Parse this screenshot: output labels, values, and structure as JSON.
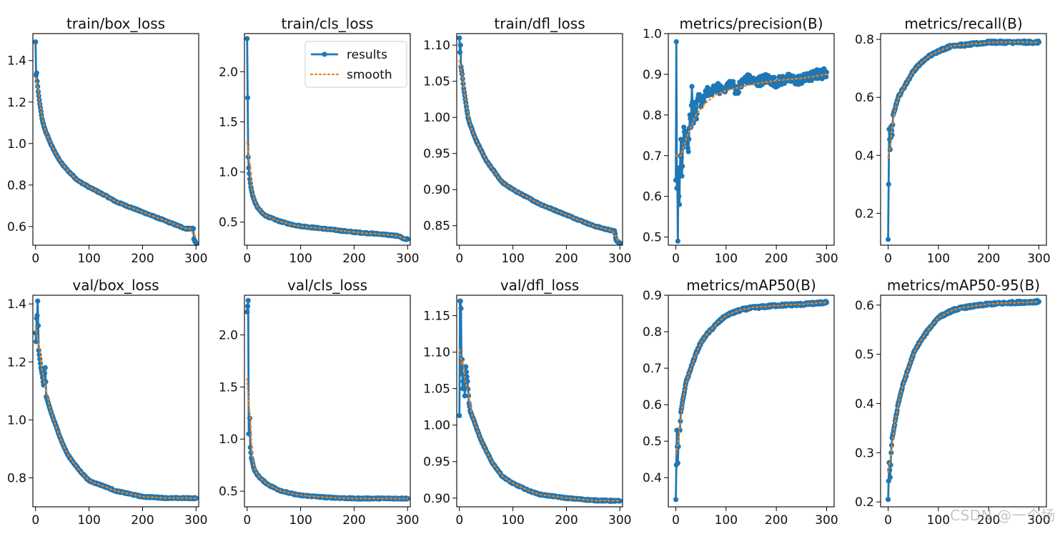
{
  "style": {
    "results_color": "#1f77b4",
    "smooth_color": "#ff7f0e",
    "frame_color": "#000000",
    "background": "#ffffff"
  },
  "legend": {
    "results": "results",
    "smooth": "smooth",
    "location": "upper right of second panel (train/cls_loss)"
  },
  "watermark": "CSDN @一个场",
  "chart_data": [
    {
      "type": "line",
      "title": "train/box_loss",
      "xlim": [
        -5,
        305
      ],
      "ylim": [
        0.51,
        1.53
      ],
      "xticks": [
        0,
        100,
        200,
        300
      ],
      "yticks": [
        0.6,
        0.8,
        1.0,
        1.2,
        1.4
      ],
      "ytick_labels": [
        "0.6",
        "0.8",
        "1.0",
        "1.2",
        "1.4"
      ],
      "grid": false,
      "kind": "loss_decay",
      "series": [
        {
          "name": "results",
          "x": [
            0,
            1,
            2,
            3,
            5,
            8,
            12,
            16,
            20,
            30,
            40,
            50,
            60,
            80,
            100,
            130,
            150,
            200,
            250,
            280,
            295,
            296,
            300
          ],
          "y": [
            1.49,
            1.33,
            1.34,
            1.3,
            1.25,
            1.19,
            1.12,
            1.08,
            1.05,
            0.99,
            0.94,
            0.9,
            0.87,
            0.82,
            0.79,
            0.75,
            0.72,
            0.67,
            0.62,
            0.59,
            0.59,
            0.54,
            0.52
          ]
        },
        {
          "name": "smooth",
          "style": "dotted"
        }
      ]
    },
    {
      "type": "line",
      "title": "train/cls_loss",
      "xlim": [
        -5,
        305
      ],
      "ylim": [
        0.27,
        2.38
      ],
      "xticks": [
        0,
        100,
        200,
        300
      ],
      "yticks": [
        0.5,
        1.0,
        1.5,
        2.0
      ],
      "ytick_labels": [
        "0.5",
        "1.0",
        "1.5",
        "2.0"
      ],
      "grid": false,
      "kind": "loss_decay",
      "series": [
        {
          "name": "results",
          "x": [
            0,
            2,
            3,
            5,
            7,
            10,
            15,
            20,
            30,
            40,
            60,
            80,
            100,
            150,
            200,
            250,
            285,
            290,
            295,
            300
          ],
          "y": [
            2.33,
            1.15,
            1.04,
            0.93,
            0.85,
            0.77,
            0.69,
            0.64,
            0.58,
            0.55,
            0.51,
            0.48,
            0.46,
            0.43,
            0.4,
            0.38,
            0.36,
            0.34,
            0.33,
            0.33
          ]
        },
        {
          "name": "smooth",
          "style": "dotted"
        }
      ]
    },
    {
      "type": "line",
      "title": "train/dfl_loss",
      "xlim": [
        -5,
        305
      ],
      "ylim": [
        0.823,
        1.116
      ],
      "xticks": [
        0,
        100,
        200,
        300
      ],
      "yticks": [
        0.85,
        0.9,
        0.95,
        1.0,
        1.05,
        1.1
      ],
      "ytick_labels": [
        "0.85",
        "0.90",
        "0.95",
        "1.00",
        "1.05",
        "1.10"
      ],
      "grid": false,
      "kind": "loss_decay",
      "series": [
        {
          "name": "results",
          "x": [
            0,
            1,
            2,
            3,
            5,
            8,
            12,
            16,
            20,
            30,
            40,
            50,
            60,
            80,
            100,
            150,
            200,
            250,
            285,
            290,
            293,
            295,
            300
          ],
          "y": [
            1.11,
            1.09,
            1.1,
            1.07,
            1.06,
            1.04,
            1.02,
            1.0,
            0.99,
            0.97,
            0.955,
            0.94,
            0.93,
            0.91,
            0.9,
            0.88,
            0.865,
            0.85,
            0.843,
            0.843,
            0.83,
            0.828,
            0.826
          ]
        },
        {
          "name": "smooth",
          "style": "dotted"
        }
      ]
    },
    {
      "type": "line",
      "title": "metrics/precision(B)",
      "xlim": [
        -15,
        315
      ],
      "ylim": [
        0.48,
        1.0
      ],
      "xticks": [
        0,
        100,
        200,
        300
      ],
      "yticks": [
        0.5,
        0.6,
        0.7,
        0.8,
        0.9,
        1.0
      ],
      "ytick_labels": [
        "0.5",
        "0.6",
        "0.7",
        "0.8",
        "0.9",
        "1.0"
      ],
      "grid": false,
      "kind": "metric_noisy",
      "series": [
        {
          "name": "results",
          "x": [
            0,
            1,
            2,
            3,
            4,
            5,
            6,
            7,
            8,
            9,
            10,
            12,
            14,
            16,
            18,
            20,
            22,
            25,
            28,
            30,
            32,
            35,
            38,
            40,
            45,
            50,
            55,
            60,
            70,
            80,
            90,
            100,
            110,
            120,
            140,
            160,
            180,
            200,
            220,
            240,
            260,
            280,
            290,
            300
          ],
          "y": [
            0.64,
            0.98,
            0.62,
            0.66,
            0.49,
            0.67,
            0.6,
            0.58,
            0.66,
            0.7,
            0.74,
            0.65,
            0.72,
            0.77,
            0.74,
            0.73,
            0.76,
            0.71,
            0.8,
            0.77,
            0.87,
            0.78,
            0.83,
            0.79,
            0.85,
            0.82,
            0.84,
            0.86,
            0.85,
            0.87,
            0.86,
            0.87,
            0.88,
            0.86,
            0.89,
            0.88,
            0.89,
            0.88,
            0.89,
            0.885,
            0.89,
            0.9,
            0.9,
            0.905
          ]
        },
        {
          "name": "smooth",
          "style": "dotted",
          "x": [
            0,
            10,
            20,
            30,
            40,
            60,
            80,
            100,
            150,
            200,
            250,
            300
          ],
          "y": [
            0.7,
            0.7,
            0.74,
            0.77,
            0.8,
            0.83,
            0.85,
            0.86,
            0.875,
            0.885,
            0.89,
            0.9
          ]
        }
      ]
    },
    {
      "type": "line",
      "title": "metrics/recall(B)",
      "xlim": [
        -15,
        315
      ],
      "ylim": [
        0.09,
        0.82
      ],
      "xticks": [
        0,
        100,
        200,
        300
      ],
      "yticks": [
        0.2,
        0.4,
        0.6,
        0.8
      ],
      "ytick_labels": [
        "0.2",
        "0.4",
        "0.6",
        "0.8"
      ],
      "grid": false,
      "kind": "metric_rise",
      "series": [
        {
          "name": "results",
          "x": [
            0,
            2,
            4,
            6,
            8,
            10,
            15,
            20,
            30,
            40,
            50,
            60,
            80,
            100,
            130,
            150,
            200,
            250,
            300
          ],
          "y": [
            0.11,
            0.49,
            0.42,
            0.5,
            0.47,
            0.54,
            0.57,
            0.6,
            0.63,
            0.66,
            0.69,
            0.71,
            0.74,
            0.76,
            0.78,
            0.78,
            0.79,
            0.79,
            0.79
          ]
        },
        {
          "name": "smooth",
          "style": "dotted"
        }
      ]
    },
    {
      "type": "line",
      "title": "val/box_loss",
      "xlim": [
        -5,
        305
      ],
      "ylim": [
        0.7,
        1.43
      ],
      "xticks": [
        0,
        100,
        200,
        300
      ],
      "yticks": [
        0.8,
        1.0,
        1.2,
        1.4
      ],
      "ytick_labels": [
        "0.8",
        "1.0",
        "1.2",
        "1.4"
      ],
      "grid": false,
      "kind": "loss_decay",
      "series": [
        {
          "name": "results",
          "x": [
            0,
            1,
            2,
            3,
            4,
            6,
            8,
            10,
            12,
            15,
            18,
            20,
            25,
            30,
            40,
            50,
            60,
            80,
            100,
            130,
            150,
            200,
            250,
            300
          ],
          "y": [
            1.3,
            1.27,
            1.35,
            1.36,
            1.41,
            1.24,
            1.21,
            1.18,
            1.16,
            1.12,
            1.18,
            1.08,
            1.05,
            1.02,
            0.97,
            0.92,
            0.88,
            0.83,
            0.79,
            0.77,
            0.755,
            0.735,
            0.73,
            0.73
          ]
        },
        {
          "name": "smooth",
          "style": "dotted"
        }
      ]
    },
    {
      "type": "line",
      "title": "val/cls_loss",
      "xlim": [
        -5,
        305
      ],
      "ylim": [
        0.35,
        2.38
      ],
      "xticks": [
        0,
        100,
        200,
        300
      ],
      "yticks": [
        0.5,
        1.0,
        1.5,
        2.0
      ],
      "ytick_labels": [
        "0.5",
        "1.0",
        "1.5",
        "2.0"
      ],
      "grid": false,
      "kind": "loss_decay",
      "series": [
        {
          "name": "results",
          "x": [
            0,
            2,
            3,
            4,
            5,
            6,
            8,
            10,
            12,
            15,
            20,
            30,
            40,
            60,
            80,
            100,
            150,
            200,
            250,
            300
          ],
          "y": [
            2.22,
            2.33,
            1.05,
            1.05,
            1.2,
            0.92,
            0.82,
            0.78,
            0.73,
            0.69,
            0.65,
            0.6,
            0.56,
            0.51,
            0.48,
            0.46,
            0.44,
            0.43,
            0.43,
            0.43
          ]
        },
        {
          "name": "smooth",
          "style": "dotted"
        }
      ]
    },
    {
      "type": "line",
      "title": "val/dfl_loss",
      "xlim": [
        -5,
        305
      ],
      "ylim": [
        0.888,
        1.178
      ],
      "xticks": [
        0,
        100,
        200,
        300
      ],
      "yticks": [
        0.9,
        0.95,
        1.0,
        1.05,
        1.1,
        1.15
      ],
      "ytick_labels": [
        "0.90",
        "0.95",
        "1.00",
        "1.05",
        "1.10",
        "1.15"
      ],
      "grid": false,
      "kind": "loss_decay",
      "series": [
        {
          "name": "results",
          "x": [
            0,
            1,
            2,
            3,
            4,
            5,
            6,
            8,
            10,
            12,
            15,
            18,
            20,
            25,
            30,
            40,
            50,
            60,
            80,
            100,
            130,
            150,
            200,
            250,
            300
          ],
          "y": [
            1.013,
            1.17,
            1.17,
            1.16,
            1.07,
            1.09,
            1.05,
            1.07,
            1.04,
            1.08,
            1.06,
            1.03,
            1.02,
            1.01,
            1.0,
            0.98,
            0.965,
            0.95,
            0.93,
            0.92,
            0.91,
            0.905,
            0.9,
            0.897,
            0.896
          ]
        },
        {
          "name": "smooth",
          "style": "dotted"
        }
      ]
    },
    {
      "type": "line",
      "title": "metrics/mAP50(B)",
      "xlim": [
        -15,
        315
      ],
      "ylim": [
        0.32,
        0.9
      ],
      "xticks": [
        0,
        100,
        200,
        300
      ],
      "yticks": [
        0.4,
        0.5,
        0.6,
        0.7,
        0.8,
        0.9
      ],
      "ytick_labels": [
        "0.4",
        "0.5",
        "0.6",
        "0.7",
        "0.8",
        "0.9"
      ],
      "grid": false,
      "kind": "metric_rise",
      "series": [
        {
          "name": "results",
          "x": [
            0,
            2,
            4,
            6,
            8,
            10,
            15,
            20,
            30,
            40,
            50,
            60,
            80,
            100,
            130,
            150,
            200,
            250,
            300
          ],
          "y": [
            0.34,
            0.53,
            0.44,
            0.53,
            0.53,
            0.58,
            0.62,
            0.66,
            0.7,
            0.74,
            0.77,
            0.79,
            0.82,
            0.845,
            0.86,
            0.865,
            0.872,
            0.875,
            0.88
          ]
        },
        {
          "name": "smooth",
          "style": "dotted"
        }
      ]
    },
    {
      "type": "line",
      "title": "metrics/mAP50-95(B)",
      "xlim": [
        -15,
        315
      ],
      "ylim": [
        0.19,
        0.62
      ],
      "xticks": [
        0,
        100,
        200,
        300
      ],
      "yticks": [
        0.2,
        0.3,
        0.4,
        0.5,
        0.6
      ],
      "ytick_labels": [
        "0.2",
        "0.3",
        "0.4",
        "0.5",
        "0.6"
      ],
      "grid": false,
      "kind": "metric_rise",
      "series": [
        {
          "name": "results",
          "x": [
            0,
            2,
            4,
            6,
            8,
            10,
            15,
            20,
            30,
            40,
            50,
            60,
            80,
            100,
            130,
            150,
            200,
            250,
            300
          ],
          "y": [
            0.205,
            0.28,
            0.25,
            0.3,
            0.33,
            0.34,
            0.37,
            0.4,
            0.44,
            0.47,
            0.5,
            0.52,
            0.55,
            0.575,
            0.59,
            0.595,
            0.602,
            0.605,
            0.607
          ]
        },
        {
          "name": "smooth",
          "style": "dotted"
        }
      ]
    }
  ]
}
